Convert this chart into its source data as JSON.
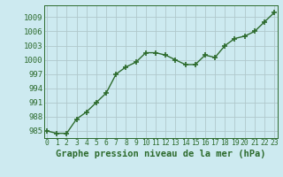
{
  "x": [
    0,
    1,
    2,
    3,
    4,
    5,
    6,
    7,
    8,
    9,
    10,
    11,
    12,
    13,
    14,
    15,
    16,
    17,
    18,
    19,
    20,
    21,
    22,
    23
  ],
  "y": [
    985.0,
    984.5,
    984.5,
    987.5,
    989.0,
    991.0,
    993.0,
    997.0,
    998.5,
    999.5,
    1001.5,
    1001.5,
    1001.0,
    1000.0,
    999.0,
    999.0,
    1001.0,
    1000.5,
    1003.0,
    1004.5,
    1005.0,
    1006.0,
    1008.0,
    1010.0
  ],
  "line_color": "#2d6b2d",
  "marker": "+",
  "marker_size": 5,
  "marker_lw": 1.2,
  "line_width": 1.0,
  "bg_color": "#cdeaf0",
  "grid_color": "#b0c8cc",
  "xlabel": "Graphe pression niveau de la mer (hPa)",
  "xlabel_fontsize": 7.5,
  "ytick_fontsize": 6.5,
  "xtick_fontsize": 5.8,
  "yticks": [
    985,
    988,
    991,
    994,
    997,
    1000,
    1003,
    1006,
    1009
  ],
  "ylim": [
    983.5,
    1011.5
  ],
  "xlim": [
    -0.3,
    23.3
  ],
  "xticks": [
    0,
    1,
    2,
    3,
    4,
    5,
    6,
    7,
    8,
    9,
    10,
    11,
    12,
    13,
    14,
    15,
    16,
    17,
    18,
    19,
    20,
    21,
    22,
    23
  ]
}
